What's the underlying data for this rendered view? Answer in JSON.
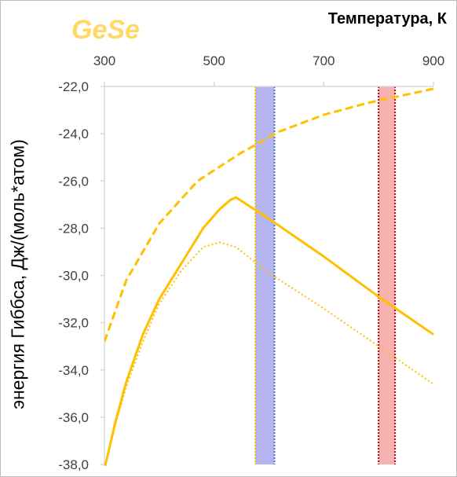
{
  "chart_data": {
    "type": "line",
    "title": "GeSe",
    "xlabel": "Температура, К",
    "ylabel": "энергия Гиббса, Дж/(моль*атом)",
    "xlim": [
      300,
      900
    ],
    "ylim": [
      -38,
      -22
    ],
    "x_ticks": [
      "300",
      "500",
      "700",
      "900"
    ],
    "y_ticks": [
      "-22,0",
      "-24,0",
      "-26,0",
      "-28,0",
      "-30,0",
      "-32,0",
      "-34,0",
      "-36,0",
      "-38,0"
    ],
    "x_axis_position": "top",
    "grid": false,
    "series": [
      {
        "style": "dashed",
        "color": "#ffc000",
        "x": [
          300,
          340,
          400,
          470,
          550,
          620,
          700,
          780,
          860,
          900
        ],
        "y": [
          -32.8,
          -30.2,
          -27.8,
          -26.0,
          -24.8,
          -23.9,
          -23.2,
          -22.7,
          -22.3,
          -22.1
        ]
      },
      {
        "style": "solid",
        "color": "#ffc000",
        "x": [
          300,
          320,
          340,
          370,
          400,
          440,
          480,
          510,
          530,
          540,
          600,
          700,
          800,
          900
        ],
        "y": [
          -38.2,
          -36.2,
          -34.5,
          -32.5,
          -31.0,
          -29.5,
          -28.0,
          -27.2,
          -26.8,
          -26.7,
          -27.6,
          -29.2,
          -30.9,
          -32.5
        ]
      },
      {
        "style": "dotted",
        "color": "#ffc000",
        "x": [
          300,
          320,
          340,
          370,
          400,
          440,
          480,
          510,
          540,
          600,
          700,
          800,
          900
        ],
        "y": [
          -38.2,
          -36.3,
          -34.7,
          -32.8,
          -31.2,
          -29.8,
          -28.8,
          -28.6,
          -28.8,
          -29.9,
          -31.4,
          -33.0,
          -34.6
        ]
      }
    ],
    "bands": [
      {
        "x0": 575,
        "x1": 610,
        "fill": "#b4b4f0",
        "edge_left": "#ffc000",
        "edge_right": "#4472c4"
      },
      {
        "x0": 800,
        "x1": 830,
        "fill": "#f7b1b1",
        "edge_left": "#c00000",
        "edge_right": "#c00000"
      }
    ]
  }
}
